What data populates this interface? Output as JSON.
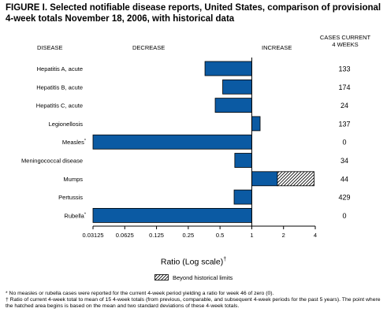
{
  "header": {
    "title": "FIGURE I. Selected notifiable disease reports, United States, comparison of provisional 4-week totals November 18, 2006, with historical data",
    "col_disease": "DISEASE",
    "col_decrease": "DECREASE",
    "col_increase": "INCREASE",
    "col_cases_line1": "CASES CURRENT",
    "col_cases_line2": "4 WEEKS"
  },
  "chart_data": {
    "type": "bar",
    "orientation": "horizontal",
    "x_scale": "log2",
    "xlim": [
      0.03125,
      4
    ],
    "baseline": 1,
    "xlabel": "Ratio (Log scale)",
    "xlabel_mark": "†",
    "x_ticks": [
      "0.03125",
      "0.0625",
      "0.125",
      "0.25",
      "0.5",
      "1",
      "2",
      "4"
    ],
    "x_tick_values": [
      0.03125,
      0.0625,
      0.125,
      0.25,
      0.5,
      1,
      2,
      4
    ],
    "categories": [
      {
        "label": "Hepatitis A, acute",
        "mark": "",
        "ratio": 0.36,
        "beyond_limit": null,
        "cases": "133"
      },
      {
        "label": "Hepatitis B, acute",
        "mark": "",
        "ratio": 0.53,
        "beyond_limit": null,
        "cases": "174"
      },
      {
        "label": "Hepatitis C, acute",
        "mark": "",
        "ratio": 0.45,
        "beyond_limit": null,
        "cases": "24"
      },
      {
        "label": "Legionellosis",
        "mark": "",
        "ratio": 1.2,
        "beyond_limit": null,
        "cases": "137"
      },
      {
        "label": "Measles",
        "mark": "*",
        "ratio": 0.03125,
        "beyond_limit": null,
        "cases": "0"
      },
      {
        "label": "Meningococcal disease",
        "mark": "",
        "ratio": 0.69,
        "beyond_limit": null,
        "cases": "34"
      },
      {
        "label": "Mumps",
        "mark": "",
        "ratio": 1.75,
        "beyond_limit": 3.9,
        "cases": "44"
      },
      {
        "label": "Pertussis",
        "mark": "",
        "ratio": 0.68,
        "beyond_limit": null,
        "cases": "429"
      },
      {
        "label": "Rubella",
        "mark": "*",
        "ratio": 0.03125,
        "beyond_limit": null,
        "cases": "0"
      }
    ],
    "colors": {
      "bar": "#0b5aa3",
      "bar_edge": "#000000",
      "axis": "#000000"
    },
    "legend_label": "Beyond historical limits",
    "legend_placement": "bottom-center"
  },
  "footnotes": {
    "star": "* No measles or rubella cases were reported for the current 4-week period yielding a ratio for week 46 of zero (0).",
    "dagger": "† Ratio of current 4-week total to mean of 15 4-week totals (from previous, comparable, and subsequent 4-week periods for the past 5 years). The point where the hatched area begins is based on the mean and two standard deviations of these 4-week totals."
  }
}
